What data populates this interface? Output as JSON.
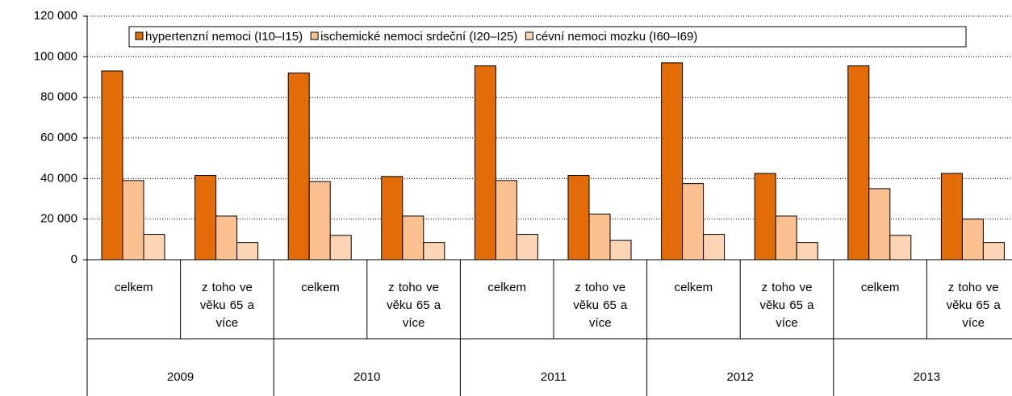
{
  "chart_data": {
    "type": "bar",
    "categories": [
      "celkem",
      "z toho ve věku 65 a více",
      "celkem",
      "z toho ve věku 65 a více",
      "celkem",
      "z toho ve věku 65 a více",
      "celkem",
      "z toho ve věku 65 a více",
      "celkem",
      "z toho ve věku 65 a více"
    ],
    "category_groups": [
      "2009",
      "2010",
      "2011",
      "2012",
      "2013"
    ],
    "series": [
      {
        "name": "hypertenzní nemoci (I10–I15)",
        "color": "#e36c09",
        "values": [
          93000,
          41500,
          92000,
          41000,
          95500,
          41500,
          97000,
          42500,
          95500,
          42500
        ]
      },
      {
        "name": "ischemické nemoci srdeční (I20–I25)",
        "color": "#fac090",
        "values": [
          39000,
          21500,
          38500,
          21500,
          39000,
          22500,
          37500,
          21500,
          35000,
          20000
        ]
      },
      {
        "name": "cévní nemoci mozku (I60–I69)",
        "color": "#fcd5b5",
        "values": [
          12500,
          8500,
          12000,
          8500,
          12500,
          9500,
          12500,
          8500,
          12000,
          8500
        ]
      }
    ],
    "ylim": [
      0,
      120000
    ],
    "yticks": [
      0,
      {
        "value": 20000,
        "label": "20 000"
      },
      {
        "value": 40000,
        "label": "40 000"
      },
      {
        "value": 60000,
        "label": "60 000"
      },
      {
        "value": 80000,
        "label": "80 000"
      },
      {
        "value": 100000,
        "label": "100 000"
      },
      {
        "value": 120000,
        "label": "120 000"
      }
    ],
    "grid": true,
    "legend": "top"
  }
}
